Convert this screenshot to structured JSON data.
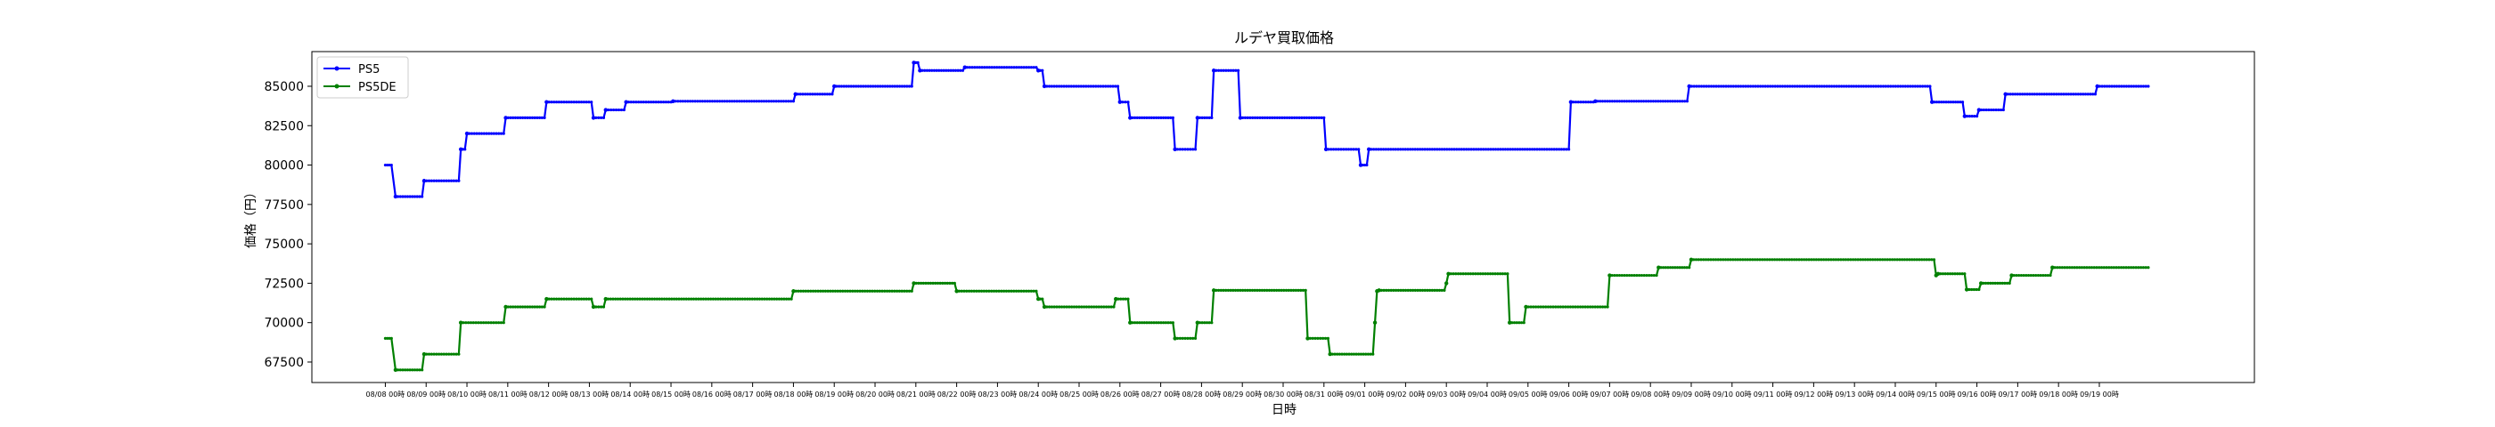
{
  "chart_data": {
    "type": "line",
    "title": "ルデヤ買取価格",
    "xlabel": "日時",
    "ylabel": "価格（円）",
    "ylim": [
      66200,
      87200
    ],
    "yticks": [
      67500,
      70000,
      72500,
      75000,
      77500,
      80000,
      82500,
      85000
    ],
    "ytick_labels": [
      "67500",
      "70000",
      "72500",
      "75000",
      "77500",
      "80000",
      "82500",
      "85000"
    ],
    "xlim": [
      -1.8,
      45.8
    ],
    "x_categories": [
      "08/08 00時",
      "08/09 00時",
      "08/10 00時",
      "08/11 00時",
      "08/12 00時",
      "08/13 00時",
      "08/14 00時",
      "08/15 00時",
      "08/16 00時",
      "08/17 00時",
      "08/18 00時",
      "08/19 00時",
      "08/20 00時",
      "08/21 00時",
      "08/22 00時",
      "08/23 00時",
      "08/24 00時",
      "08/25 00時",
      "08/26 00時",
      "08/27 00時",
      "08/28 00時",
      "08/29 00時",
      "08/30 00時",
      "08/31 00時",
      "09/01 00時",
      "09/02 00時",
      "09/03 00時",
      "09/04 00時",
      "09/05 00時",
      "09/06 00時",
      "09/07 00時",
      "09/08 00時",
      "09/09 00時",
      "09/10 00時",
      "09/11 00時",
      "09/12 00時",
      "09/13 00時",
      "09/14 00時",
      "09/15 00時",
      "09/16 00時",
      "09/17 00時",
      "09/18 00時",
      "09/19 00時"
    ],
    "grid": false,
    "legend_position": "top-left",
    "series": [
      {
        "name": "PS5",
        "color": "#0000ff",
        "points": [
          [
            0,
            80000
          ],
          [
            0.15,
            80000
          ],
          [
            0.25,
            78000
          ],
          [
            0.9,
            78000
          ],
          [
            0.95,
            79000
          ],
          [
            1.8,
            79000
          ],
          [
            1.85,
            81000
          ],
          [
            1.95,
            81000
          ],
          [
            2.0,
            82000
          ],
          [
            2.9,
            82000
          ],
          [
            2.95,
            83000
          ],
          [
            3.9,
            83000
          ],
          [
            3.95,
            84000
          ],
          [
            5.05,
            84000
          ],
          [
            5.1,
            83000
          ],
          [
            5.35,
            83000
          ],
          [
            5.4,
            83500
          ],
          [
            5.85,
            83500
          ],
          [
            5.9,
            84000
          ],
          [
            7.0,
            84000
          ],
          [
            7.05,
            84050
          ],
          [
            10.0,
            84050
          ],
          [
            10.05,
            84500
          ],
          [
            10.95,
            84500
          ],
          [
            11.0,
            85000
          ],
          [
            12.9,
            85000
          ],
          [
            12.95,
            86500
          ],
          [
            13.05,
            86500
          ],
          [
            13.1,
            86000
          ],
          [
            14.15,
            86000
          ],
          [
            14.2,
            86200
          ],
          [
            15.95,
            86200
          ],
          [
            16.0,
            86000
          ],
          [
            16.1,
            86000
          ],
          [
            16.15,
            85000
          ],
          [
            17.95,
            85000
          ],
          [
            18.0,
            84000
          ],
          [
            18.2,
            84000
          ],
          [
            18.25,
            83000
          ],
          [
            19.3,
            83000
          ],
          [
            19.35,
            81000
          ],
          [
            19.85,
            81000
          ],
          [
            19.9,
            83000
          ],
          [
            20.25,
            83000
          ],
          [
            20.3,
            86000
          ],
          [
            20.9,
            86000
          ],
          [
            20.95,
            83000
          ],
          [
            23.0,
            83000
          ],
          [
            23.05,
            81000
          ],
          [
            23.85,
            81000
          ],
          [
            23.9,
            80000
          ],
          [
            24.05,
            80000
          ],
          [
            24.1,
            81000
          ],
          [
            29.0,
            81000
          ],
          [
            29.05,
            84000
          ],
          [
            29.6,
            84000
          ],
          [
            29.65,
            84050
          ],
          [
            31.9,
            84050
          ],
          [
            31.95,
            85000
          ],
          [
            37.85,
            85000
          ],
          [
            37.9,
            84000
          ],
          [
            38.65,
            84000
          ],
          [
            38.7,
            83100
          ],
          [
            39.0,
            83100
          ],
          [
            39.05,
            83500
          ],
          [
            39.65,
            83500
          ],
          [
            39.7,
            84500
          ],
          [
            41.9,
            84500
          ],
          [
            41.95,
            85000
          ],
          [
            43.2,
            85000
          ]
        ]
      },
      {
        "name": "PS5DE",
        "color": "#008000",
        "points": [
          [
            0,
            69000
          ],
          [
            0.15,
            69000
          ],
          [
            0.25,
            67000
          ],
          [
            0.9,
            67000
          ],
          [
            0.95,
            68000
          ],
          [
            1.8,
            68000
          ],
          [
            1.85,
            70000
          ],
          [
            2.9,
            70000
          ],
          [
            2.95,
            71000
          ],
          [
            3.9,
            71000
          ],
          [
            3.95,
            71500
          ],
          [
            5.05,
            71500
          ],
          [
            5.1,
            71000
          ],
          [
            5.35,
            71000
          ],
          [
            5.4,
            71500
          ],
          [
            9.95,
            71500
          ],
          [
            10.0,
            72000
          ],
          [
            12.9,
            72000
          ],
          [
            12.95,
            72500
          ],
          [
            13.95,
            72500
          ],
          [
            14.0,
            72000
          ],
          [
            15.95,
            72000
          ],
          [
            16.0,
            71500
          ],
          [
            16.1,
            71500
          ],
          [
            16.15,
            71000
          ],
          [
            17.85,
            71000
          ],
          [
            17.9,
            71500
          ],
          [
            18.2,
            71500
          ],
          [
            18.25,
            70000
          ],
          [
            19.3,
            70000
          ],
          [
            19.35,
            69000
          ],
          [
            19.85,
            69000
          ],
          [
            19.9,
            70000
          ],
          [
            20.25,
            70000
          ],
          [
            20.3,
            72050
          ],
          [
            22.55,
            72050
          ],
          [
            22.6,
            69000
          ],
          [
            23.1,
            69000
          ],
          [
            23.15,
            68000
          ],
          [
            24.2,
            68000
          ],
          [
            24.25,
            70000
          ],
          [
            24.3,
            72000
          ],
          [
            24.35,
            72050
          ],
          [
            25.95,
            72050
          ],
          [
            26.0,
            72500
          ],
          [
            26.05,
            73100
          ],
          [
            27.5,
            73100
          ],
          [
            27.55,
            70000
          ],
          [
            27.9,
            70000
          ],
          [
            27.95,
            71000
          ],
          [
            29.95,
            71000
          ],
          [
            30.0,
            73000
          ],
          [
            31.15,
            73000
          ],
          [
            31.2,
            73500
          ],
          [
            31.95,
            73500
          ],
          [
            32.0,
            74000
          ],
          [
            37.95,
            74000
          ],
          [
            38.0,
            73000
          ],
          [
            38.05,
            73100
          ],
          [
            38.7,
            73100
          ],
          [
            38.75,
            72100
          ],
          [
            39.05,
            72100
          ],
          [
            39.1,
            72500
          ],
          [
            39.8,
            72500
          ],
          [
            39.85,
            73000
          ],
          [
            40.8,
            73000
          ],
          [
            40.85,
            73500
          ],
          [
            43.2,
            73500
          ]
        ]
      }
    ]
  }
}
